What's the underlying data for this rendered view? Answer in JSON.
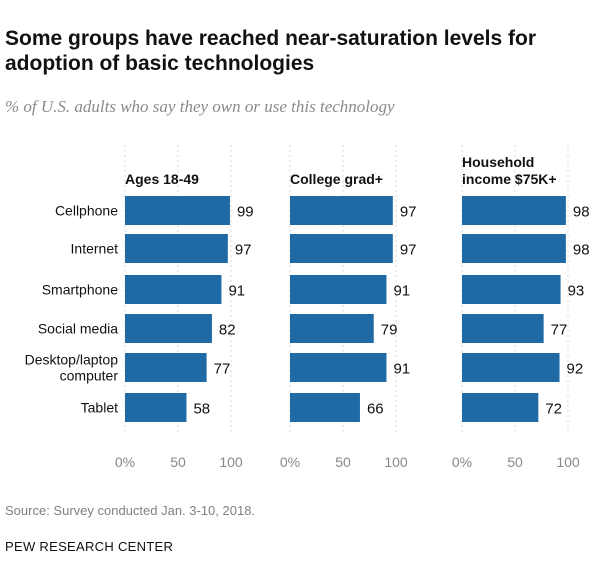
{
  "title": "Some groups have reached near-saturation levels for adoption of basic technologies",
  "subtitle": "% of U.S. adults who say they own or use this technology",
  "source": "Source: Survey conducted Jan. 3-10, 2018.",
  "organization": "PEW RESEARCH CENTER",
  "colors": {
    "bar": "#1f6aa5",
    "grid": "#d9d9d9",
    "tick_text": "#888888"
  },
  "chart_data": {
    "type": "bar",
    "orientation": "horizontal",
    "categories": [
      [
        "Cellphone"
      ],
      [
        "Internet"
      ],
      [
        "Smartphone"
      ],
      [
        "Social media"
      ],
      [
        "Desktop/laptop",
        "computer"
      ],
      [
        "Tablet"
      ]
    ],
    "series": [
      {
        "name": [
          "Ages 18-49"
        ],
        "values": [
          99,
          97,
          91,
          82,
          77,
          58
        ]
      },
      {
        "name": [
          "College grad+"
        ],
        "values": [
          97,
          97,
          91,
          79,
          91,
          66
        ]
      },
      {
        "name": [
          "Household",
          "income $75K+"
        ],
        "values": [
          98,
          98,
          93,
          77,
          92,
          72
        ]
      }
    ],
    "xlim": [
      0,
      100
    ],
    "ticks": [
      "0%",
      "50",
      "100"
    ],
    "grid": true,
    "legend": "none"
  }
}
